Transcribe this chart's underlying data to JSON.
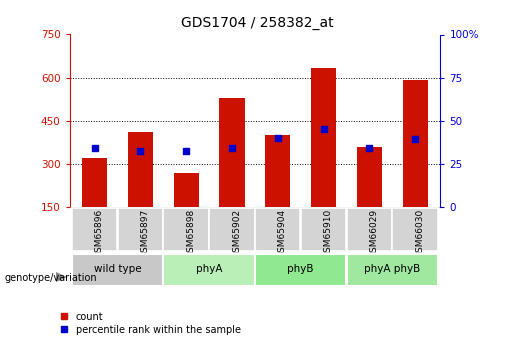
{
  "title": "GDS1704 / 258382_at",
  "samples": [
    "GSM65896",
    "GSM65897",
    "GSM65898",
    "GSM65902",
    "GSM65904",
    "GSM65910",
    "GSM66029",
    "GSM66030"
  ],
  "counts": [
    320,
    410,
    270,
    530,
    400,
    635,
    360,
    590
  ],
  "percentile_values": [
    355,
    345,
    345,
    355,
    390,
    420,
    355,
    385
  ],
  "groups": [
    {
      "label": "wild type",
      "indices": [
        0,
        1
      ],
      "color": "#c8c8c8"
    },
    {
      "label": "phyA",
      "indices": [
        2,
        3
      ],
      "color": "#b8f0b8"
    },
    {
      "label": "phyB",
      "indices": [
        4,
        5
      ],
      "color": "#90e890"
    },
    {
      "label": "phyA phyB",
      "indices": [
        6,
        7
      ],
      "color": "#a0e8a0"
    }
  ],
  "bar_color": "#cc1100",
  "marker_color": "#0000cc",
  "ylim_left": [
    150,
    750
  ],
  "ylim_right": [
    0,
    100
  ],
  "yticks_left": [
    150,
    300,
    450,
    600,
    750
  ],
  "yticks_right": [
    0,
    25,
    50,
    75,
    100
  ],
  "group_label": "genotype/variation",
  "legend_count": "count",
  "legend_percentile": "percentile rank within the sample",
  "bar_width": 0.55,
  "background_color": "#ffffff",
  "plot_bg": "#ffffff",
  "left_axis_color": "#cc1100",
  "right_axis_color": "#0000cc",
  "sample_box_color": "#d4d4d4",
  "title_fontsize": 10
}
